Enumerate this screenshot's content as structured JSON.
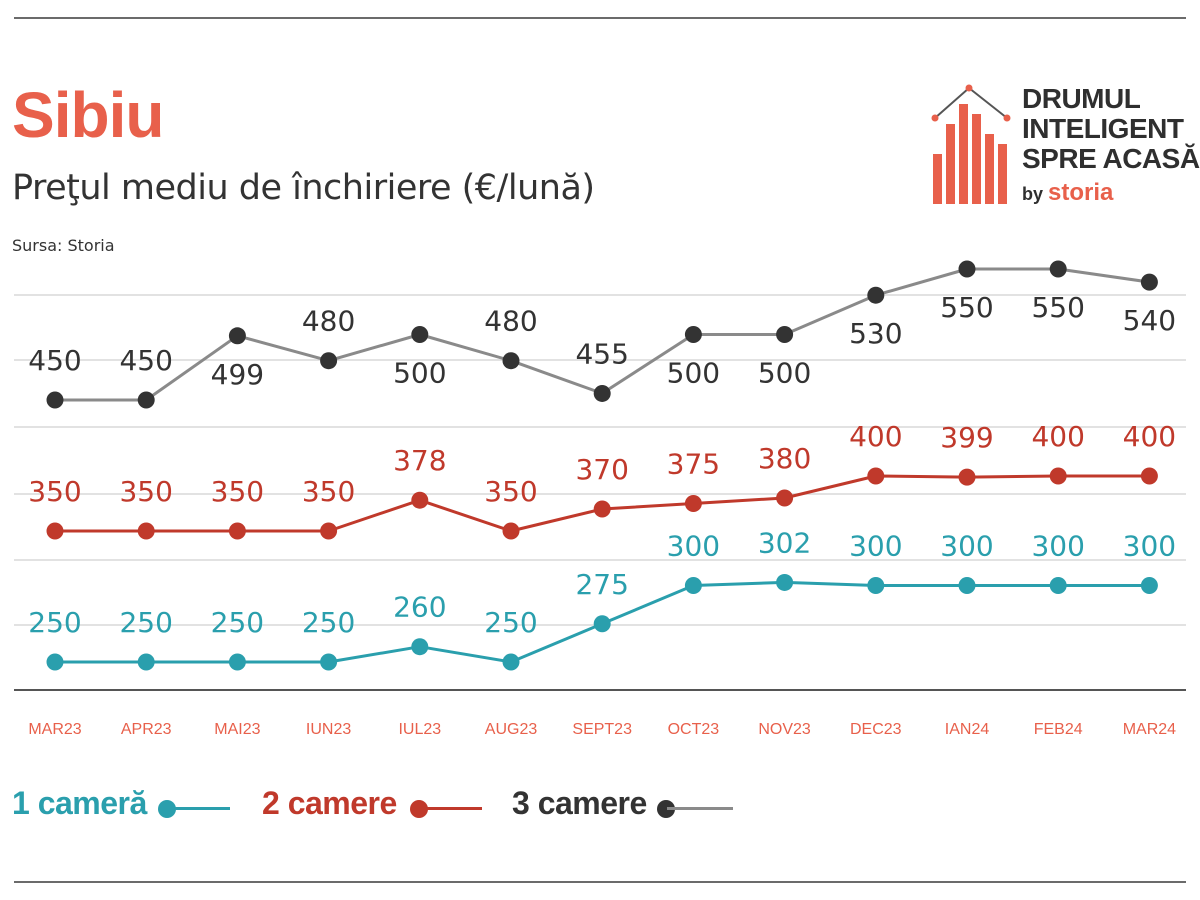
{
  "header": {
    "title": "Sibiu",
    "subtitle": "Preţul mediu de închiriere (€/lună)",
    "source": "Sursa: Storia"
  },
  "logo": {
    "lines": [
      "DRUMUL",
      "INTELIGENT",
      "SPRE ACASĂ"
    ],
    "by": "by",
    "brand": "storia"
  },
  "colors": {
    "accent": "#e8604b",
    "series_1": "#2a9fad",
    "series_2": "#c0392b",
    "series_3": "#333333",
    "line_3": "#8a8a8a",
    "grid": "#d9d9d9",
    "axis": "#555555"
  },
  "chart_data": {
    "type": "line",
    "title": "Preţul mediu de închiriere (€/lună)",
    "xlabel": "",
    "ylabel": "€/lună",
    "categories": [
      "MAR23",
      "APR23",
      "MAI23",
      "IUN23",
      "IUL23",
      "AUG23",
      "SEPT23",
      "OCT23",
      "NOV23",
      "DEC23",
      "IAN24",
      "FEB24",
      "MAR24"
    ],
    "series": [
      {
        "name": "1 cameră",
        "values": [
          250,
          250,
          250,
          250,
          260,
          250,
          275,
          300,
          302,
          300,
          300,
          300,
          300
        ]
      },
      {
        "name": "2 camere",
        "values": [
          350,
          350,
          350,
          350,
          378,
          350,
          370,
          375,
          380,
          400,
          399,
          400,
          400
        ]
      },
      {
        "name": "3 camere",
        "values": [
          450,
          450,
          499,
          480,
          500,
          480,
          455,
          500,
          500,
          530,
          550,
          550,
          540
        ]
      }
    ],
    "legend": "bottom-left",
    "grid": true
  }
}
